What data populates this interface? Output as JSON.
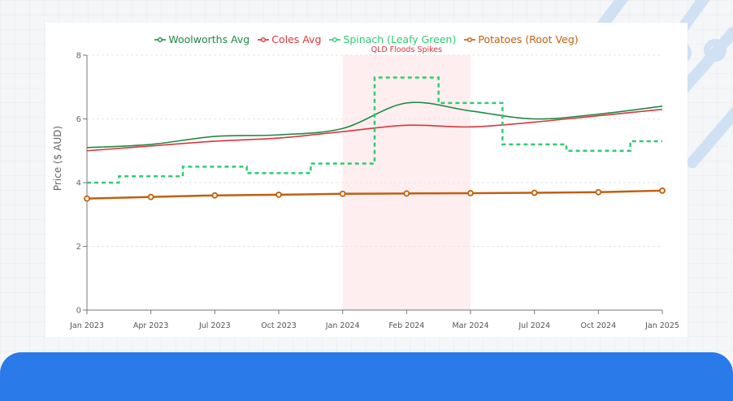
{
  "chart_data": {
    "type": "line",
    "title": "",
    "xlabel": "",
    "ylabel": "Price ($ AUD)",
    "ylim": [
      0,
      8
    ],
    "yticks": [
      0,
      2,
      4,
      6,
      8
    ],
    "grid": "horizontal dashed",
    "legend_position": "top",
    "categories": [
      "Jan 2023",
      "Apr 2023",
      "Jul 2023",
      "Oct 2023",
      "Jan 2024",
      "Feb 2024",
      "Mar 2024",
      "Jul 2024",
      "Oct 2024",
      "Jan 2025"
    ],
    "series": [
      {
        "name": "Woolworths Avg",
        "color": "#1e8a44",
        "style": "smooth",
        "values": [
          5.1,
          5.2,
          5.45,
          5.5,
          5.7,
          6.5,
          6.25,
          6.0,
          6.15,
          6.4
        ]
      },
      {
        "name": "Coles Avg",
        "color": "#d9363e",
        "style": "smooth",
        "values": [
          5.0,
          5.15,
          5.3,
          5.4,
          5.6,
          5.8,
          5.75,
          5.9,
          6.1,
          6.3
        ]
      },
      {
        "name": "Spinach (Leafy Green)",
        "color": "#2ecc71",
        "style": "step-dashed",
        "values": [
          4.0,
          4.2,
          4.5,
          4.3,
          4.6,
          7.3,
          6.5,
          5.2,
          5.0,
          5.3
        ]
      },
      {
        "name": "Potatoes (Root Veg)",
        "color": "#c0600f",
        "style": "line-markers",
        "values": [
          3.5,
          3.55,
          3.6,
          3.62,
          3.65,
          3.66,
          3.67,
          3.68,
          3.7,
          3.75
        ]
      }
    ],
    "annotations": [
      {
        "type": "shaded-region",
        "x_start": "Jan 2024",
        "x_end": "Mar 2024",
        "label": "QLD Floods Spikes",
        "color": "#fde8ea",
        "label_color": "#e0303a"
      }
    ]
  }
}
